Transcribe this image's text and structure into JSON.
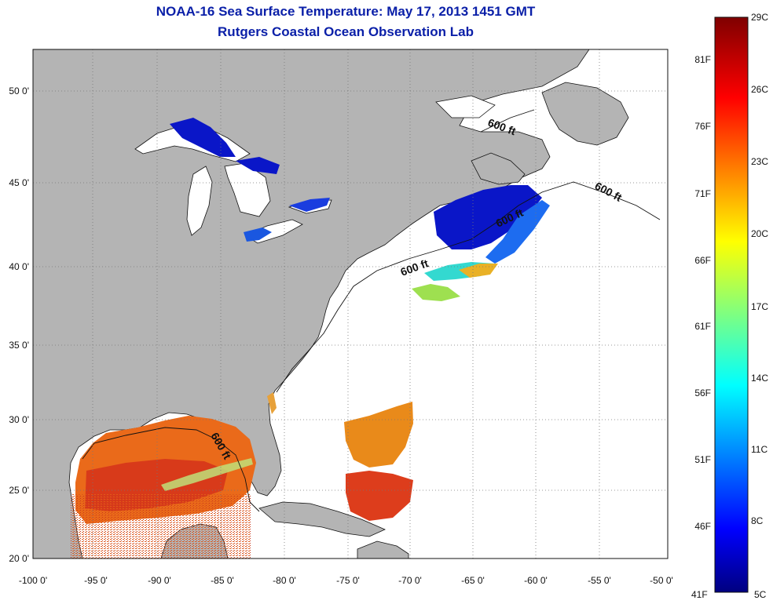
{
  "header": {
    "title": "NOAA-16 Sea Surface Temperature:  May 17, 2013 1451 GMT",
    "subtitle": "Rutgers Coastal Ocean Observation Lab"
  },
  "map": {
    "lon_range": [
      -100,
      -50
    ],
    "lat_range": [
      20,
      52.5
    ],
    "lat_ticks": [
      "20 0'",
      "25 0'",
      "30 0'",
      "35 0'",
      "40 0'",
      "45 0'",
      "50 0'"
    ],
    "lon_ticks": [
      "-100 0'",
      "-95 0'",
      "-90 0'",
      "-85 0'",
      "-80 0'",
      "-75 0'",
      "-70 0'",
      "-65 0'",
      "-60 0'",
      "-55 0'",
      "-50 0'"
    ],
    "isobath_label": "600 ft",
    "land_color": "#b4b4b4",
    "ocean_color": "#ffffff"
  },
  "colorbar": {
    "celsius": [
      "29C",
      "26C",
      "23C",
      "20C",
      "17C",
      "14C",
      "11C",
      "8C",
      "5C"
    ],
    "fahrenheit": [
      "81F",
      "76F",
      "71F",
      "66F",
      "61F",
      "56F",
      "51F",
      "46F",
      "41F"
    ]
  }
}
